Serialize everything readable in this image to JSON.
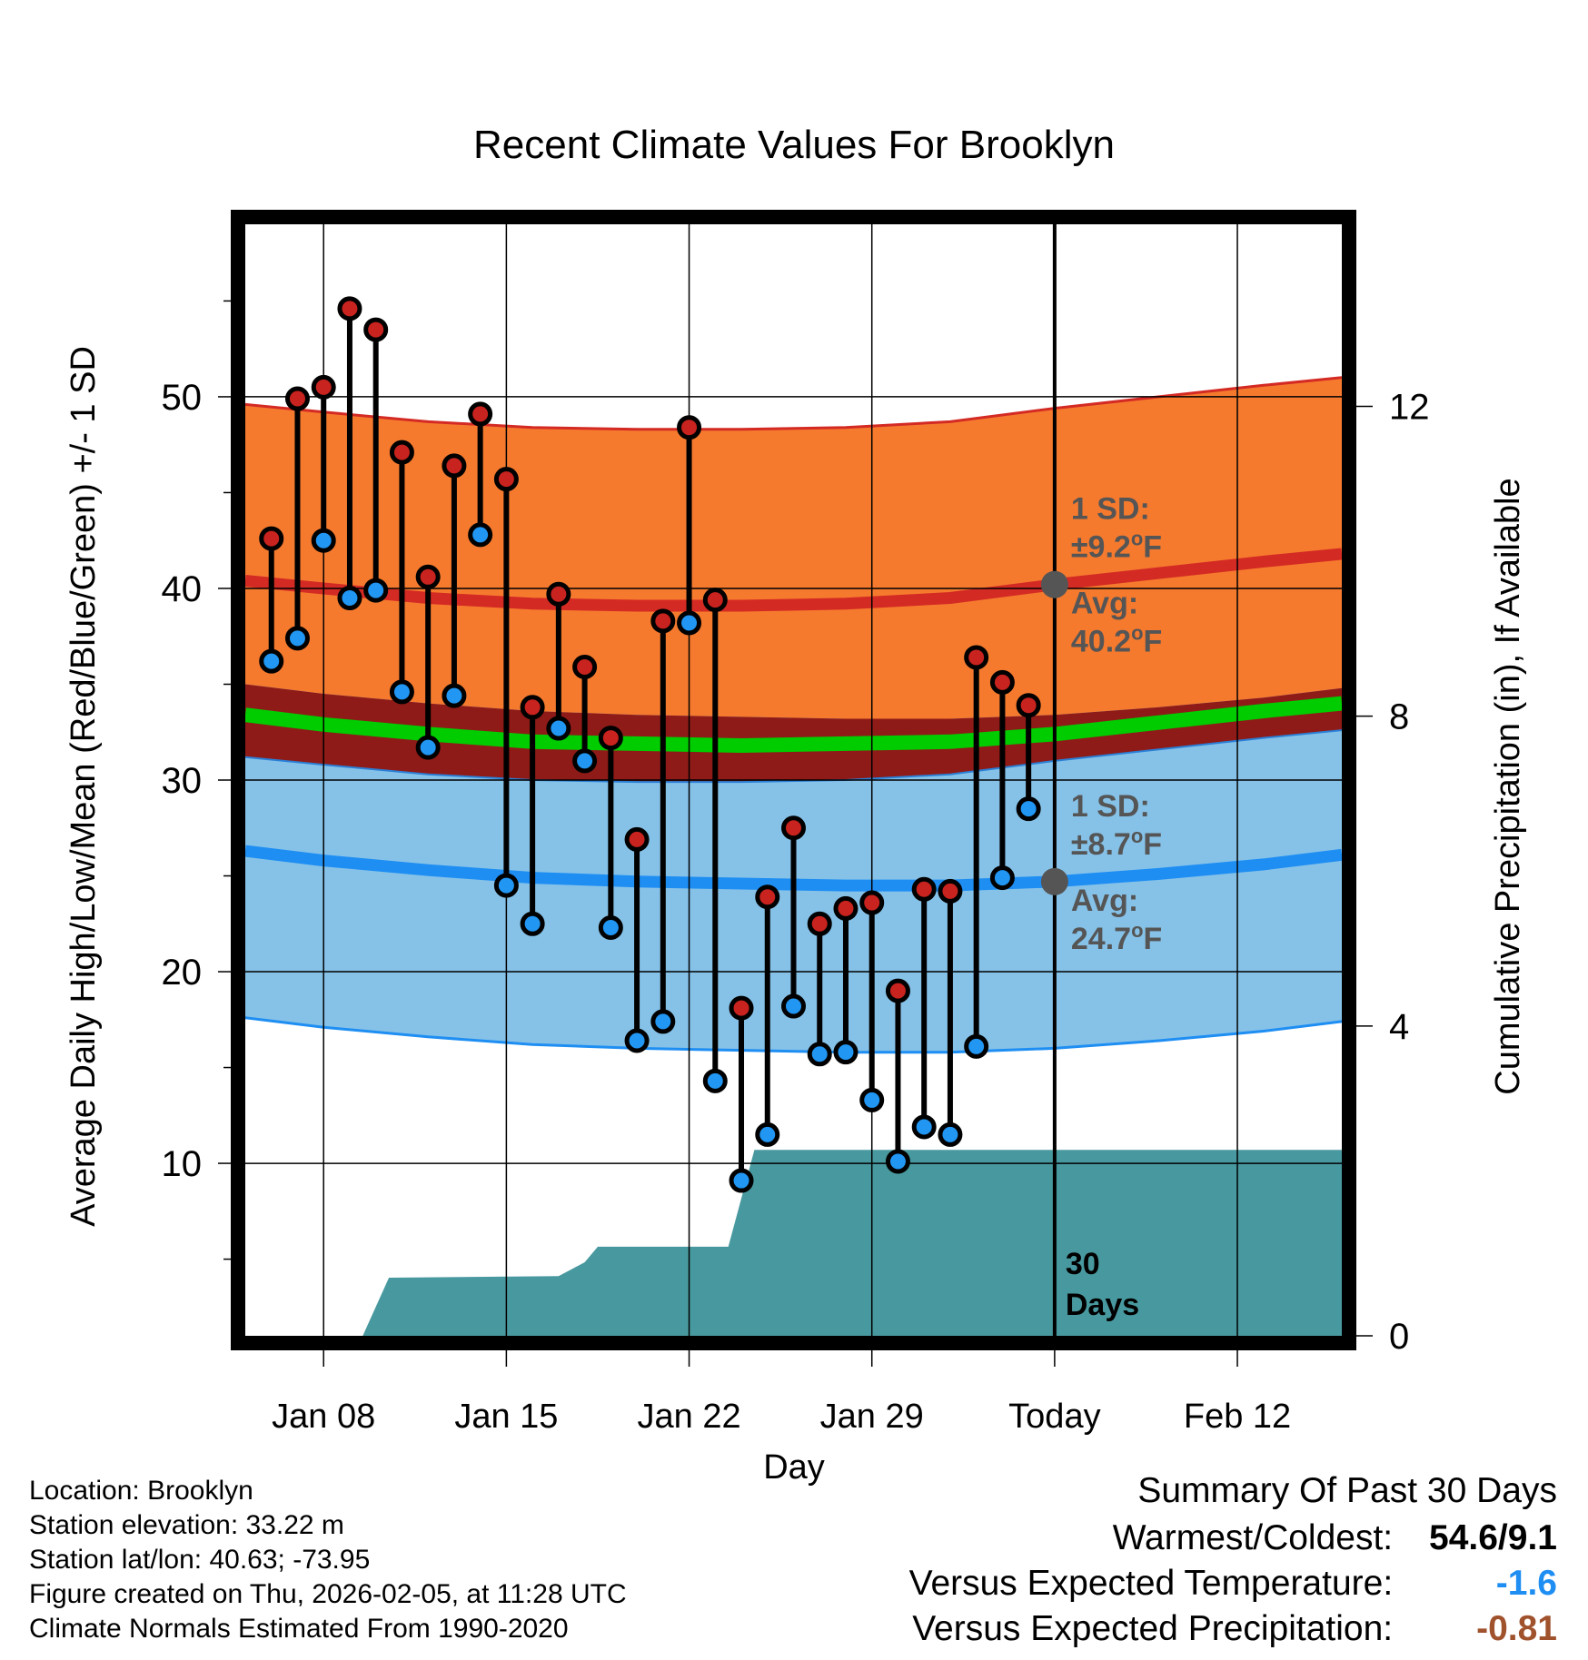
{
  "chart_data": {
    "type": "line",
    "title": "Recent Climate Values For Brooklyn",
    "xlabel": "Day",
    "ylabel": "Average Daily High/Low/Mean (Red/Blue/Green) +/- 1 SD",
    "y2label": "Cumulative Precipitation (in), If Available",
    "x_range_days": [
      -31,
      11
    ],
    "x_ticks": [
      {
        "day": -28,
        "label": "Jan 08"
      },
      {
        "day": -21,
        "label": "Jan 15"
      },
      {
        "day": -14,
        "label": "Jan 22"
      },
      {
        "day": -7,
        "label": "Jan 29"
      },
      {
        "day": 0,
        "label": "Today"
      },
      {
        "day": 7,
        "label": "Feb 12"
      }
    ],
    "ylim": [
      1,
      59
    ],
    "y_ticks": [
      10,
      20,
      30,
      40,
      50
    ],
    "y2lim": [
      0,
      14.35
    ],
    "y2_ticks": [
      0,
      4,
      8,
      12
    ],
    "today_day": 0,
    "daily": [
      {
        "day": -30,
        "high": 42.6,
        "low": 36.2
      },
      {
        "day": -29,
        "high": 49.9,
        "low": 37.4
      },
      {
        "day": -28,
        "high": 50.5,
        "low": 42.5
      },
      {
        "day": -27,
        "high": 54.6,
        "low": 39.5
      },
      {
        "day": -26,
        "high": 53.5,
        "low": 39.9
      },
      {
        "day": -25,
        "high": 47.1,
        "low": 34.6
      },
      {
        "day": -24,
        "high": 40.6,
        "low": 31.7
      },
      {
        "day": -23,
        "high": 46.4,
        "low": 34.4
      },
      {
        "day": -22,
        "high": 49.1,
        "low": 42.8
      },
      {
        "day": -21,
        "high": 45.7,
        "low": 24.5
      },
      {
        "day": -20,
        "high": 33.8,
        "low": 22.5
      },
      {
        "day": -19,
        "high": 39.7,
        "low": 32.7
      },
      {
        "day": -18,
        "high": 35.9,
        "low": 31.0
      },
      {
        "day": -17,
        "high": 32.2,
        "low": 22.3
      },
      {
        "day": -16,
        "high": 26.9,
        "low": 16.4
      },
      {
        "day": -15,
        "high": 38.3,
        "low": 17.4
      },
      {
        "day": -14,
        "high": 48.4,
        "low": 38.2
      },
      {
        "day": -13,
        "high": 39.4,
        "low": 14.3
      },
      {
        "day": -12,
        "high": 18.1,
        "low": 9.1
      },
      {
        "day": -11,
        "high": 23.9,
        "low": 11.5
      },
      {
        "day": -10,
        "high": 27.5,
        "low": 18.2
      },
      {
        "day": -9,
        "high": 22.5,
        "low": 15.7
      },
      {
        "day": -8,
        "high": 23.3,
        "low": 15.8
      },
      {
        "day": -7,
        "high": 23.6,
        "low": 13.3
      },
      {
        "day": -6,
        "high": 19.0,
        "low": 10.1
      },
      {
        "day": -5,
        "high": 24.3,
        "low": 11.9
      },
      {
        "day": -4,
        "high": 24.2,
        "low": 11.5
      },
      {
        "day": -3,
        "high": 36.4,
        "low": 16.1
      },
      {
        "day": -2,
        "high": 35.1,
        "low": 24.9
      },
      {
        "day": -1,
        "high": 33.9,
        "low": 28.5
      }
    ],
    "normals": {
      "days": [
        -31,
        -28,
        -24,
        -20,
        -16,
        -12,
        -8,
        -4,
        0,
        4,
        8,
        11
      ],
      "high_avg": [
        40.4,
        40.0,
        39.5,
        39.2,
        39.1,
        39.1,
        39.2,
        39.5,
        40.2,
        40.8,
        41.4,
        41.8
      ],
      "high_sd": 9.2,
      "low_avg": [
        26.3,
        25.8,
        25.3,
        24.9,
        24.7,
        24.6,
        24.5,
        24.5,
        24.7,
        25.1,
        25.6,
        26.1
      ],
      "low_sd": 8.7,
      "mean_avg": [
        33.4,
        32.9,
        32.4,
        32.0,
        31.9,
        31.8,
        31.9,
        32.0,
        32.4,
        33.0,
        33.6,
        34.0
      ]
    },
    "precip": {
      "days": [
        -31,
        -26.5,
        -25.5,
        -19,
        -18,
        -17.5,
        -12.5,
        -11.5,
        0,
        11
      ],
      "values": [
        0,
        0,
        0.75,
        0.77,
        0.95,
        1.15,
        1.15,
        2.4,
        2.4,
        2.4
      ]
    },
    "annotations": {
      "high_sd_label": "1 SD:",
      "high_sd_value": "±9.2",
      "high_avg_label": "Avg:",
      "high_avg_value": "40.2",
      "low_sd_label": "1 SD:",
      "low_sd_value": "±8.7",
      "low_avg_label": "Avg:",
      "low_avg_value": "24.7",
      "degree_symbol": "o",
      "unit": "F",
      "days_count": "30",
      "days_word": "Days"
    },
    "colors": {
      "high_band": "#f57a2e",
      "high_line": "#d42a24",
      "low_band": "#86c2e8",
      "low_line": "#1e8ef3",
      "overlap": "#8e1b18",
      "mean_line": "#00cc00",
      "precip": "#48999f",
      "high_marker": "#c8231e",
      "low_marker": "#2196f3",
      "today_marker": "#555555",
      "annotation_text": "#555555"
    }
  },
  "info": {
    "location": "Location: Brooklyn",
    "elevation": "Station elevation: 33.22 m",
    "latlon": "Station lat/lon: 40.63; -73.95",
    "created": "Figure created on Thu, 2026-02-05, at 11:28 UTC",
    "normals_period": "Climate Normals Estimated From 1990-2020"
  },
  "summary": {
    "title": "Summary Of Past 30 Days",
    "warm_cold_label": "Warmest/Coldest:",
    "warm_cold_value": "54.6/9.1",
    "temp_label": "Versus Expected Temperature:",
    "temp_value": "-1.6",
    "temp_color": "#1e8ef3",
    "precip_label": "Versus Expected Precipitation:",
    "precip_value": "-0.81",
    "precip_color": "#a0522d"
  }
}
